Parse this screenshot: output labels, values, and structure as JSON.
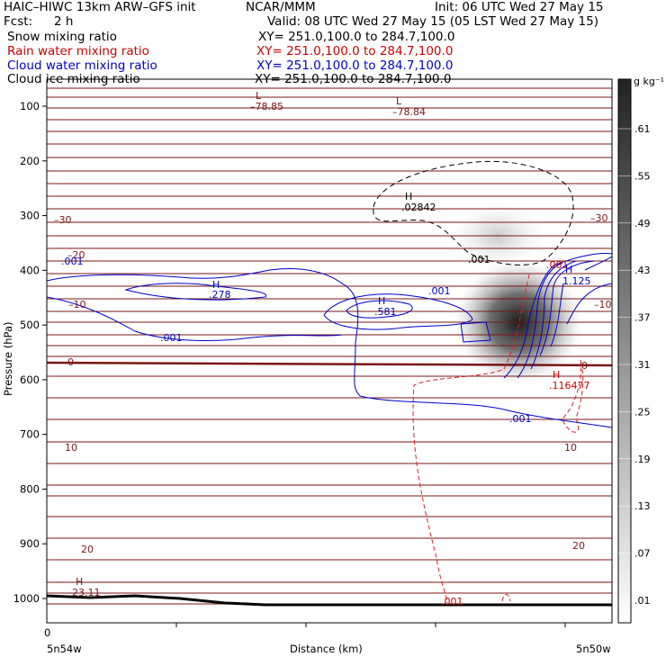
{
  "header": {
    "model": "HAIC–HIWC 13km ARW–GFS init",
    "center": "NCAR/MMM",
    "init": "Init: 06 UTC Wed 27 May 15",
    "fcst_label": "Fcst:",
    "fcst_value": "2 h",
    "valid": "Valid: 08 UTC Wed 27 May 15 (05 LST Wed 27 May 15)"
  },
  "fields": [
    {
      "name": "Snow mixing ratio",
      "xy": "XY= 251.0,100.0 to 284.7,100.0",
      "color": "#000000"
    },
    {
      "name": "Rain water mixing ratio",
      "xy": "XY= 251.0,100.0 to 284.7,100.0",
      "color": "#cc0000"
    },
    {
      "name": "Cloud water mixing ratio",
      "xy": "XY= 251.0,100.0 to 284.7,100.0",
      "color": "#0000cc"
    },
    {
      "name": "Cloud ice mixing ratio",
      "xy": "XY= 251.0,100.0 to 284.7,100.0",
      "color": "#000000"
    }
  ],
  "chart_data": {
    "type": "cross-section",
    "ylabel": "Pressure (hPa)",
    "xlabel": "Distance (km)",
    "yticks": [
      100,
      200,
      300,
      400,
      500,
      600,
      700,
      800,
      900,
      1000
    ],
    "ylim": [
      1040,
      55
    ],
    "xtick_label_left": "0",
    "x_end_left": "5n54w",
    "x_end_right": "5n50w",
    "colorbar": {
      "unit": "g kg⁻¹",
      "ticks": [
        ".61",
        ".55",
        ".49",
        ".43",
        ".37",
        ".31",
        ".25",
        ".19",
        ".13",
        ".07",
        ".01"
      ]
    },
    "temperature_labels": [
      "–30",
      "–20",
      "–10",
      "0",
      "10",
      "20"
    ],
    "extrema": [
      {
        "type": "L",
        "value": "–78.85"
      },
      {
        "type": "L",
        "value": "–78.84"
      },
      {
        "type": "H",
        "value": ".02842"
      },
      {
        "type": "H",
        "value": ".278"
      },
      {
        "type": "H",
        "value": ".581"
      },
      {
        "type": "H",
        "value": "1.125"
      },
      {
        "type": "H",
        "value": ".116477"
      },
      {
        "type": "H",
        "value": "23.11"
      }
    ],
    "contour_labels": [
      ".001",
      ".001",
      ".001",
      ".001",
      ".001",
      ".001",
      ".001"
    ]
  }
}
